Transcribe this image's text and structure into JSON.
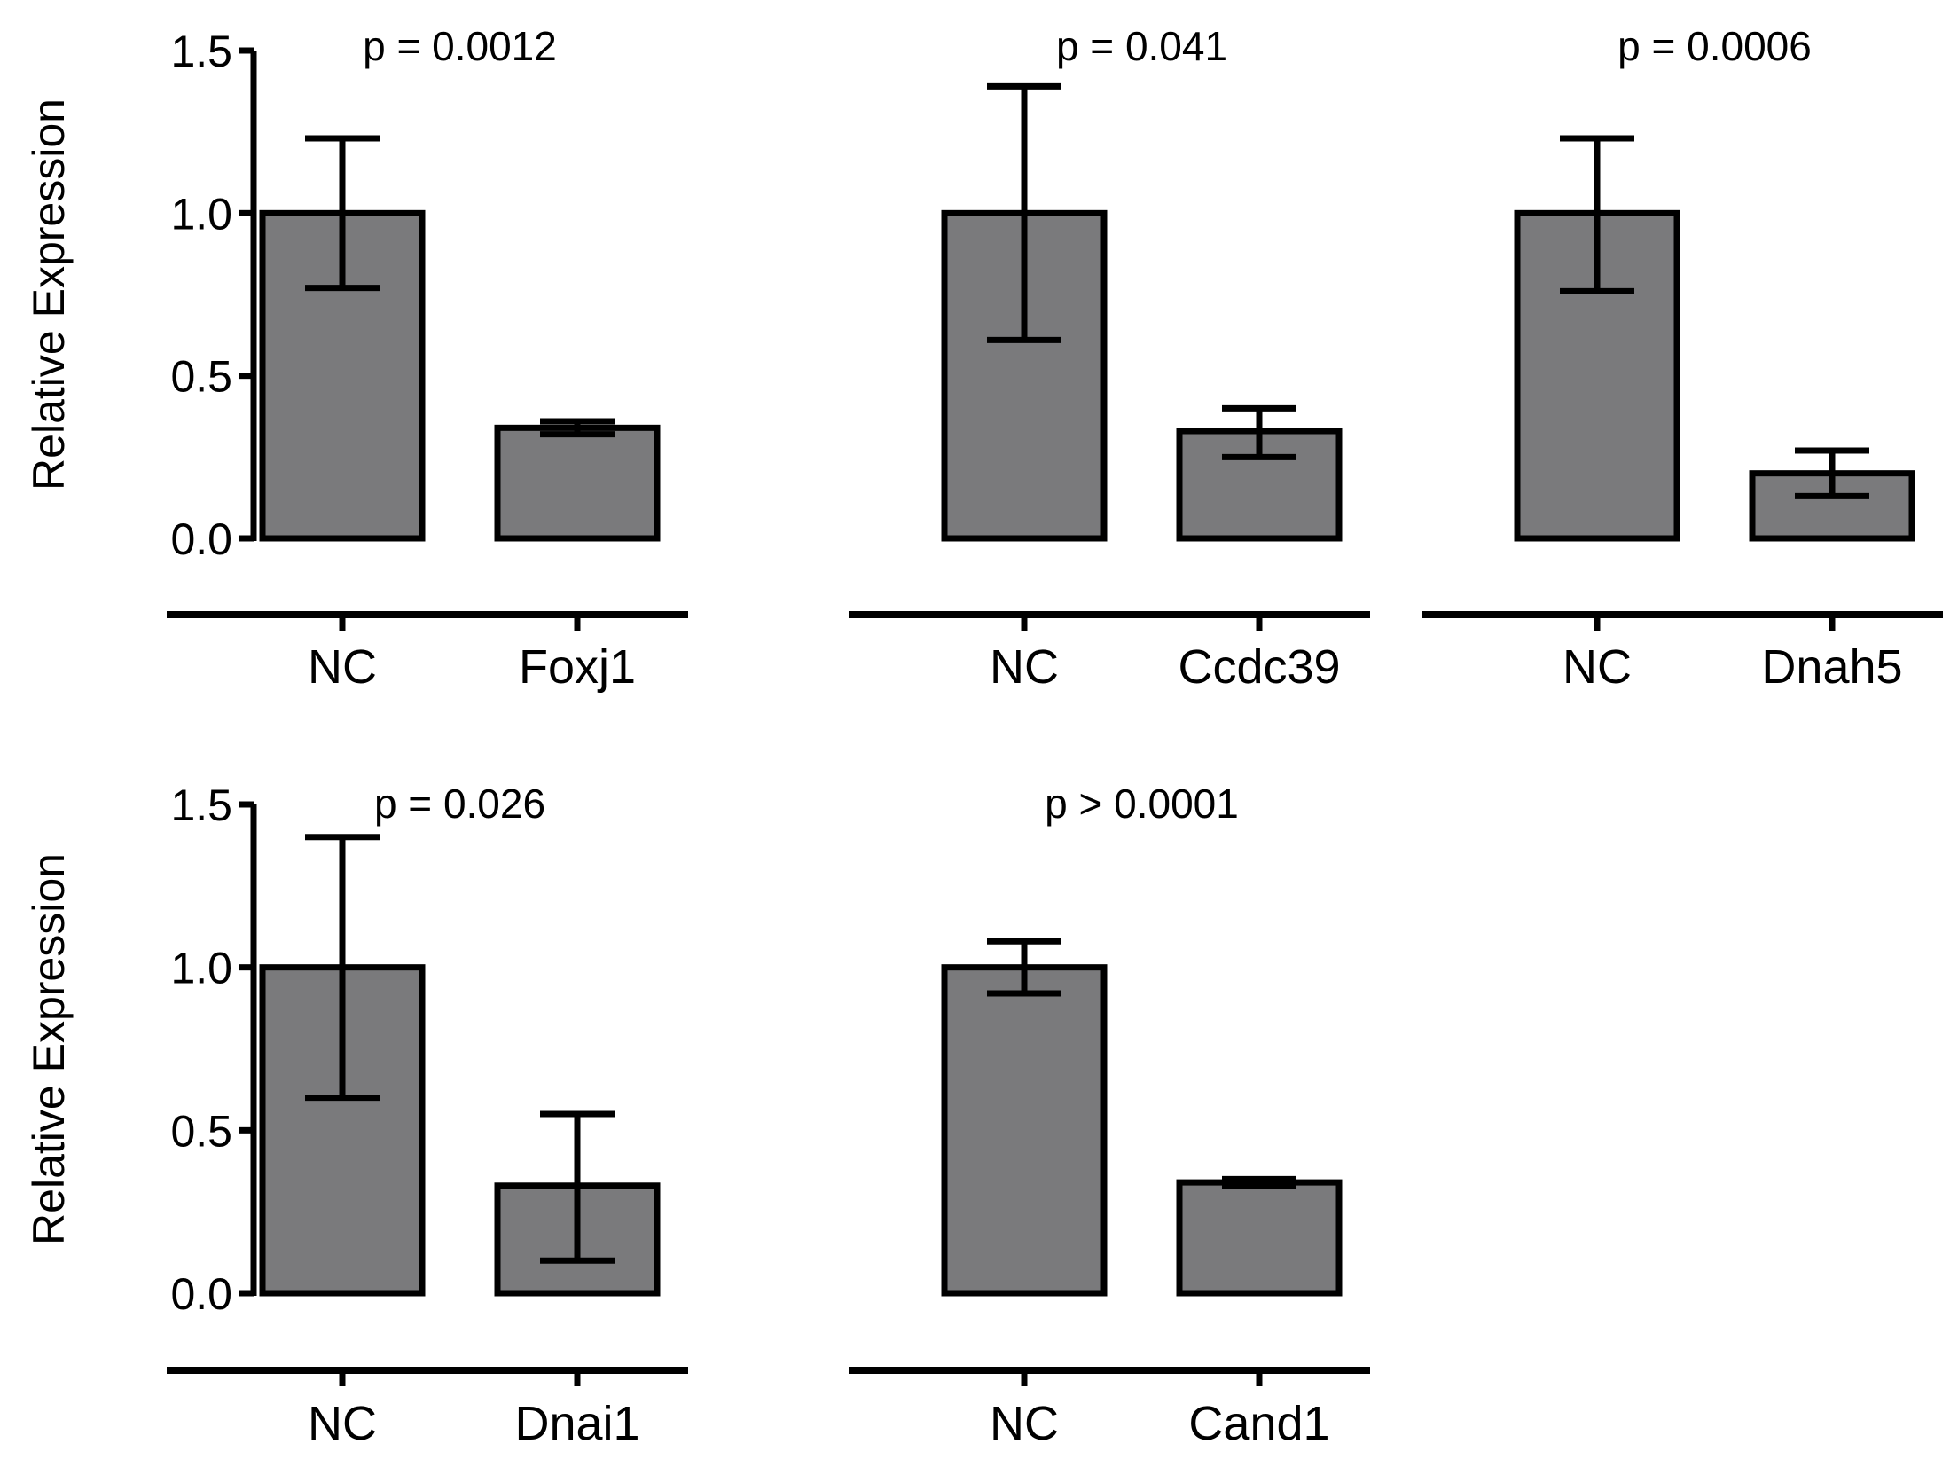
{
  "chart_data": [
    {
      "type": "bar",
      "title": "p = 0.0012",
      "categories": [
        "NC",
        "Foxj1"
      ],
      "values": [
        1.0,
        0.34
      ],
      "error_bars": [
        [
          0.77,
          1.23
        ],
        [
          0.32,
          0.36
        ]
      ],
      "ylabel": "Relative Expression",
      "xlabel": "",
      "ylim": [
        0,
        1.5
      ],
      "yticks": [
        "0.0",
        "0.5",
        "1.0",
        "1.5"
      ],
      "show_yaxis": true,
      "bar_color": "#7a7a7c"
    },
    {
      "type": "bar",
      "title": "p = 0.041",
      "categories": [
        "NC",
        "Ccdc39"
      ],
      "values": [
        1.0,
        0.33
      ],
      "error_bars": [
        [
          0.61,
          1.39
        ],
        [
          0.25,
          0.4
        ]
      ],
      "ylabel": "",
      "xlabel": "",
      "ylim": [
        0,
        1.5
      ],
      "yticks": [],
      "show_yaxis": false,
      "bar_color": "#7a7a7c"
    },
    {
      "type": "bar",
      "title": "p = 0.0006",
      "categories": [
        "NC",
        "Dnah5"
      ],
      "values": [
        1.0,
        0.2
      ],
      "error_bars": [
        [
          0.76,
          1.23
        ],
        [
          0.13,
          0.27
        ]
      ],
      "ylabel": "",
      "xlabel": "",
      "ylim": [
        0,
        1.5
      ],
      "yticks": [],
      "show_yaxis": false,
      "bar_color": "#7a7a7c"
    },
    {
      "type": "bar",
      "title": "p = 0.026",
      "categories": [
        "NC",
        "Dnai1"
      ],
      "values": [
        1.0,
        0.33
      ],
      "error_bars": [
        [
          0.6,
          1.4
        ],
        [
          0.1,
          0.55
        ]
      ],
      "ylabel": "Relative Expression",
      "xlabel": "",
      "ylim": [
        0,
        1.5
      ],
      "yticks": [
        "0.0",
        "0.5",
        "1.0",
        "1.5"
      ],
      "show_yaxis": true,
      "bar_color": "#7a7a7c"
    },
    {
      "type": "bar",
      "title": "p > 0.0001",
      "categories": [
        "NC",
        "Cand1"
      ],
      "values": [
        1.0,
        0.34
      ],
      "error_bars": [
        [
          0.92,
          1.08
        ],
        [
          0.33,
          0.35
        ]
      ],
      "ylabel": "",
      "xlabel": "",
      "ylim": [
        0,
        1.5
      ],
      "yticks": [],
      "show_yaxis": false,
      "bar_color": "#7a7a7c"
    }
  ]
}
